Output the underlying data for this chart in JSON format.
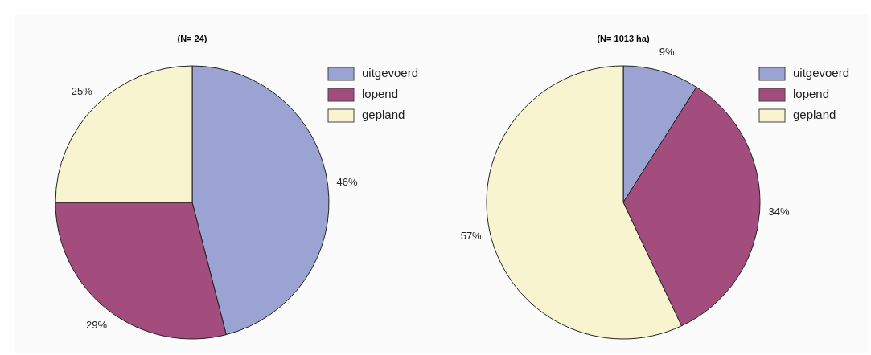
{
  "chart_data": [
    {
      "type": "pie",
      "title": "(N= 24)",
      "categories": [
        "uitgevoerd",
        "lopend",
        "gepland"
      ],
      "values": [
        46,
        29,
        25
      ],
      "value_labels": [
        "46%",
        "29%",
        "25%"
      ],
      "colors": [
        "#9ba3d3",
        "#a34d7e",
        "#f8f4cf"
      ],
      "legend": "right"
    },
    {
      "type": "pie",
      "title": "(N= 1013 ha)",
      "categories": [
        "uitgevoerd",
        "lopend",
        "gepland"
      ],
      "values": [
        9,
        34,
        57
      ],
      "value_labels": [
        "9%",
        "34%",
        "57%"
      ],
      "colors": [
        "#9ba3d3",
        "#a34d7e",
        "#f8f4cf"
      ],
      "legend": "right"
    }
  ]
}
